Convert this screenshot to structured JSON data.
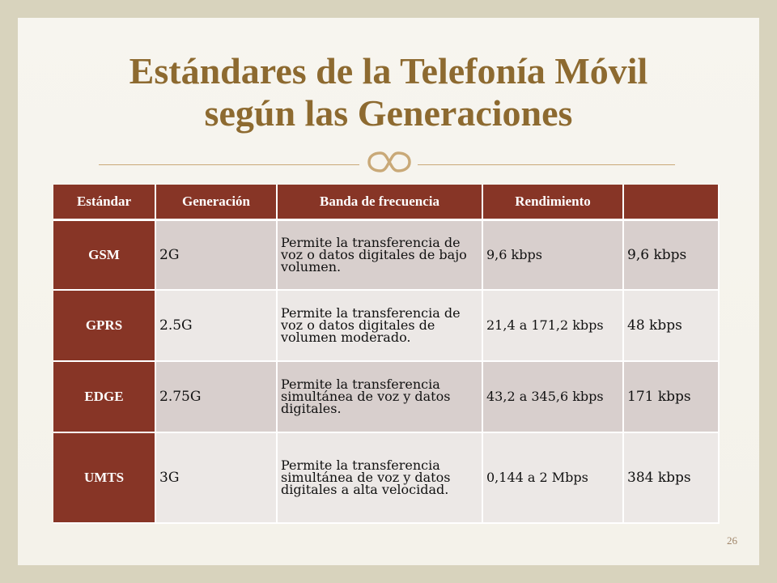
{
  "slide": {
    "title_line1": "Estándares de la Telefonía Móvil",
    "title_line2": "según las Generaciones",
    "page_number": "26",
    "ornament": "ornament-icon"
  },
  "table": {
    "headers": [
      "Estándar",
      "Generación",
      "Banda de frecuencia",
      "Rendimiento",
      ""
    ],
    "rows": [
      {
        "standard": "GSM",
        "generation": "2G",
        "band": "Permite la transferencia de voz o datos digitales de bajo volumen.",
        "performance": "9,6 kbps",
        "extra": "9,6 kbps"
      },
      {
        "standard": "GPRS",
        "generation": "2.5G",
        "band": "Permite la transferencia de voz o datos digitales de volumen moderado.",
        "performance": "21,4 a 171,2 kbps",
        "extra": "48 kbps"
      },
      {
        "standard": "EDGE",
        "generation": "2.75G",
        "band": "Permite la transferencia simultánea de voz y datos digitales.",
        "performance": "43,2 a 345,6 kbps",
        "extra": "171 kbps"
      },
      {
        "standard": "UMTS",
        "generation": "3G",
        "band": "Permite la transferencia simultánea de voz y datos digitales a alta velocidad.",
        "performance": "0,144 a 2 Mbps",
        "extra": "384 kbps"
      }
    ]
  },
  "colors": {
    "title": "#8d6a30",
    "header_bg": "#873526",
    "row_odd": "#d8cfcd",
    "row_even": "#ece8e6",
    "frame": "#d8d3bd"
  }
}
